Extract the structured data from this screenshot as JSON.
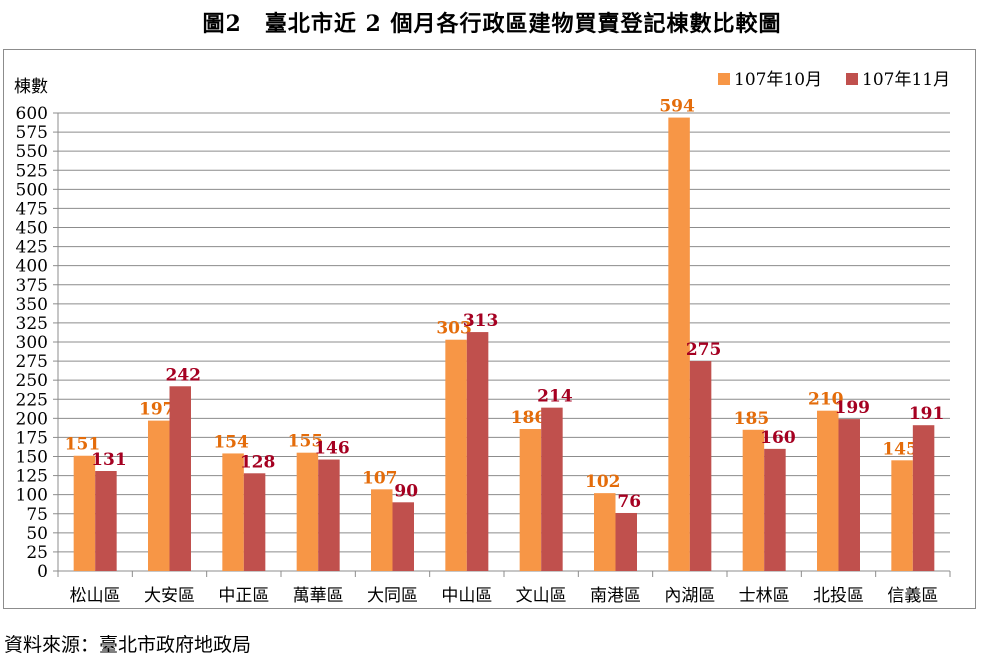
{
  "title": "圖2　臺北市近 2 個月各行政區建物買賣登記棟數比較圖",
  "source": "資料來源：臺北市政府地政局",
  "colors": {
    "series1": "#F79646",
    "series2": "#C0504D",
    "grid": "#8c8c8c",
    "label1": "#E46C0A",
    "label2": "#A50021"
  },
  "chart_data": {
    "type": "bar",
    "ylabel": "棟數",
    "ylim": [
      0,
      600
    ],
    "ytick_step": 25,
    "yticks": [
      "0",
      "25",
      "50",
      "75",
      "100",
      "125",
      "150",
      "175",
      "200",
      "225",
      "250",
      "275",
      "300",
      "325",
      "350",
      "375",
      "400",
      "425",
      "450",
      "475",
      "500",
      "525",
      "550",
      "575",
      "600"
    ],
    "grid": true,
    "legend_position": "top-right",
    "categories": [
      "松山區",
      "大安區",
      "中正區",
      "萬華區",
      "大同區",
      "中山區",
      "文山區",
      "南港區",
      "內湖區",
      "士林區",
      "北投區",
      "信義區"
    ],
    "series": [
      {
        "name": "107年10月",
        "values": [
          151,
          197,
          154,
          155,
          107,
          303,
          186,
          102,
          594,
          185,
          210,
          145
        ]
      },
      {
        "name": "107年11月",
        "values": [
          131,
          242,
          128,
          146,
          90,
          313,
          214,
          76,
          275,
          160,
          199,
          191
        ]
      }
    ]
  }
}
